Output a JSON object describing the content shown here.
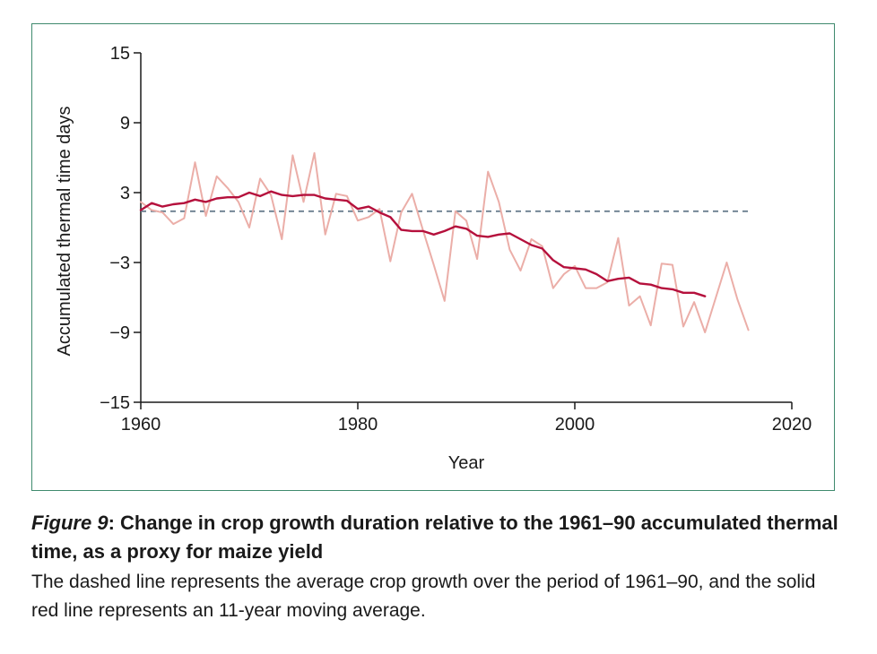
{
  "chart_data": {
    "type": "line",
    "xlabel": "Year",
    "ylabel": "Accumulated thermal time days",
    "xlim": [
      1960,
      2020
    ],
    "ylim": [
      -15,
      15
    ],
    "xticks": [
      1960,
      1980,
      2000,
      2020
    ],
    "yticks": [
      15,
      9,
      3,
      -3,
      -9,
      -15
    ],
    "ytick_labels": [
      "15",
      "9",
      "3",
      "−3",
      "−9",
      "−15"
    ],
    "baseline": {
      "name": "Average crop growth 1961–90",
      "value": 1.4,
      "x_start": 1960,
      "x_end": 2016,
      "color": "#6b7f8f",
      "style": "dashed"
    },
    "series": [
      {
        "name": "Annual values",
        "color": "#ebaea8",
        "x": [
          1960,
          1961,
          1962,
          1963,
          1964,
          1965,
          1966,
          1967,
          1968,
          1969,
          1970,
          1971,
          1972,
          1973,
          1974,
          1975,
          1976,
          1977,
          1978,
          1979,
          1980,
          1981,
          1982,
          1983,
          1984,
          1985,
          1986,
          1987,
          1988,
          1989,
          1990,
          1991,
          1992,
          1993,
          1994,
          1995,
          1996,
          1997,
          1998,
          1999,
          2000,
          2001,
          2002,
          2003,
          2004,
          2005,
          2006,
          2007,
          2008,
          2009,
          2010,
          2011,
          2012,
          2013,
          2014,
          2015,
          2016
        ],
        "y": [
          2.2,
          1.5,
          1.3,
          0.3,
          0.8,
          5.6,
          1.0,
          4.4,
          3.4,
          2.2,
          0.0,
          4.2,
          2.8,
          -1.0,
          6.2,
          2.2,
          6.4,
          -0.6,
          2.9,
          2.7,
          0.6,
          0.9,
          1.6,
          -2.9,
          1.3,
          2.9,
          -0.2,
          -3.2,
          -6.3,
          1.4,
          0.6,
          -2.7,
          4.8,
          2.2,
          -1.9,
          -3.7,
          -1.0,
          -1.6,
          -5.2,
          -4.0,
          -3.3,
          -5.2,
          -5.2,
          -4.7,
          -0.9,
          -6.7,
          -5.9,
          -8.4,
          -3.1,
          -3.2,
          -8.5,
          -6.4,
          -9.0,
          -6.0,
          -3.0,
          -6.2,
          -8.8
        ]
      },
      {
        "name": "11-year moving average",
        "color": "#b5103c",
        "x": [
          1960,
          1961,
          1962,
          1963,
          1964,
          1965,
          1966,
          1967,
          1968,
          1969,
          1970,
          1971,
          1972,
          1973,
          1974,
          1975,
          1976,
          1977,
          1978,
          1979,
          1980,
          1981,
          1982,
          1983,
          1984,
          1985,
          1986,
          1987,
          1988,
          1989,
          1990,
          1991,
          1992,
          1993,
          1994,
          1995,
          1996,
          1997,
          1998,
          1999,
          2000,
          2001,
          2002,
          2003,
          2004,
          2005,
          2006,
          2007,
          2008,
          2009,
          2010,
          2011,
          2012
        ],
        "y": [
          1.5,
          2.1,
          1.8,
          2.0,
          2.1,
          2.4,
          2.2,
          2.5,
          2.6,
          2.6,
          3.0,
          2.7,
          3.1,
          2.8,
          2.7,
          2.8,
          2.8,
          2.5,
          2.4,
          2.3,
          1.6,
          1.8,
          1.3,
          0.9,
          -0.2,
          -0.3,
          -0.3,
          -0.6,
          -0.3,
          0.1,
          -0.1,
          -0.7,
          -0.8,
          -0.6,
          -0.5,
          -1.0,
          -1.5,
          -1.8,
          -2.8,
          -3.4,
          -3.5,
          -3.6,
          -4.0,
          -4.6,
          -4.4,
          -4.3,
          -4.8,
          -4.9,
          -5.2,
          -5.3,
          -5.6,
          -5.6,
          -5.9
        ]
      }
    ]
  },
  "caption": {
    "figure_label": "Figure 9",
    "title_rest": ": Change in crop growth duration relative to the 1961–90 accumulated thermal time, as a proxy for maize yield",
    "body": "The dashed line represents the average crop growth over the period of 1961–90, and the solid red line represents an 11-year moving average."
  }
}
